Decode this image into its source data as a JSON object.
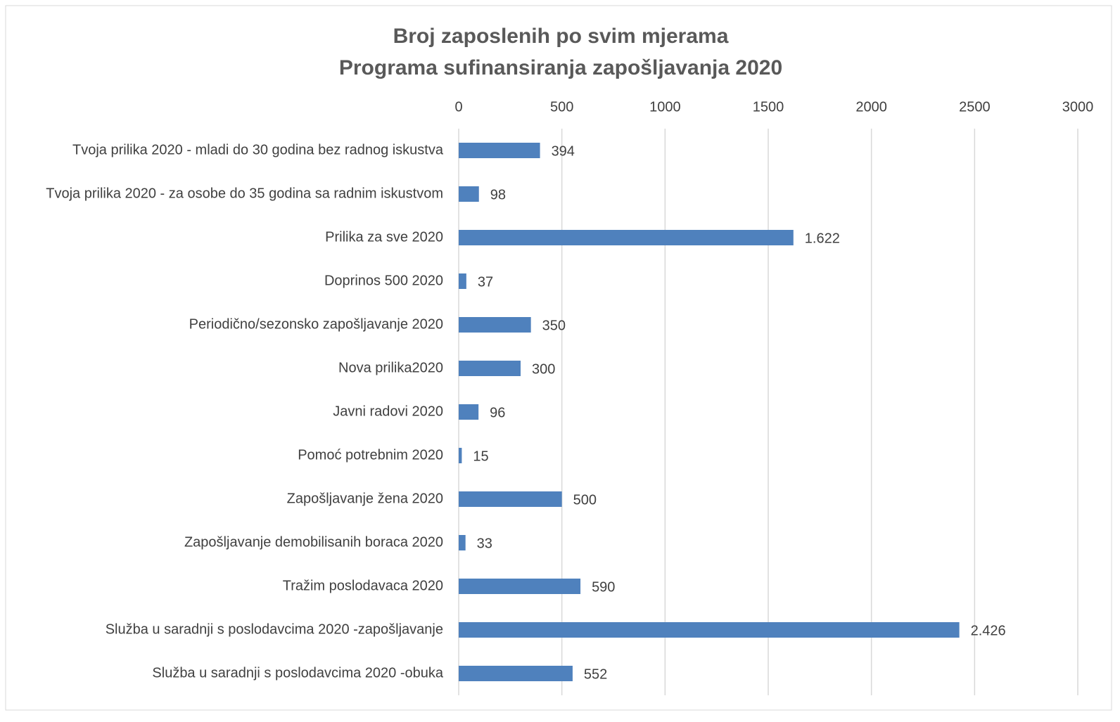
{
  "chart_data": {
    "type": "bar",
    "orientation": "horizontal",
    "title": [
      "Broj zaposlenih po svim mjerama",
      "Programa sufinansiranja zapošljavanja 2020"
    ],
    "categories": [
      "Tvoja prilika 2020 -  mladi do 30 godina bez radnog iskustva",
      "Tvoja prilika 2020 - za osobe do 35 godina sa radnim iskustvom",
      "Prilika za sve 2020",
      "Doprinos 500 2020",
      "Periodično/sezonsko zapošljavanje 2020",
      "Nova prilika2020",
      "Javni radovi 2020",
      "Pomoć potrebnim 2020",
      "Zapošljavanje žena 2020",
      "Zapošljavanje demobilisanih boraca 2020",
      "Tražim poslodavaca 2020",
      "Služba u saradnji s poslodavcima 2020 -zapošljavanje",
      "Služba u saradnji s poslodavcima 2020 -obuka"
    ],
    "values": [
      394,
      98,
      1622,
      37,
      350,
      300,
      96,
      15,
      500,
      33,
      590,
      2426,
      552
    ],
    "value_labels": [
      "394",
      "98",
      "1.622",
      "37",
      "350",
      "300",
      "96",
      "15",
      "500",
      "33",
      "590",
      "2.426",
      "552"
    ],
    "color": "#4f81bd",
    "xlim": [
      0,
      3000
    ],
    "xticks": [
      0,
      500,
      1000,
      1500,
      2000,
      2500,
      3000
    ],
    "grid": true
  }
}
